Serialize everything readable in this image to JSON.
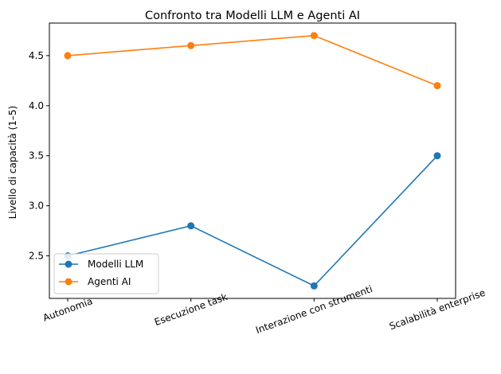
{
  "chart_data": {
    "type": "line",
    "title": "Confronto tra Modelli LLM e Agenti AI",
    "xlabel": "",
    "ylabel": "Livello di capacità (1–5)",
    "categories": [
      "Autonomia",
      "Esecuzione task",
      "Interazione con strumenti",
      "Scalabilità enterprise"
    ],
    "series": [
      {
        "name": "Modelli LLM",
        "values": [
          2.5,
          2.8,
          2.2,
          3.5
        ],
        "color": "#1f77b4"
      },
      {
        "name": "Agenti AI",
        "values": [
          4.5,
          4.6,
          4.7,
          4.2
        ],
        "color": "#ff7f0e"
      }
    ],
    "ylim": [
      2.075,
      4.825
    ],
    "yticks": [
      "2.5",
      "3.0",
      "3.5",
      "4.0",
      "4.5"
    ],
    "grid": false,
    "legend_position": "lower-left",
    "marker": "circle"
  }
}
